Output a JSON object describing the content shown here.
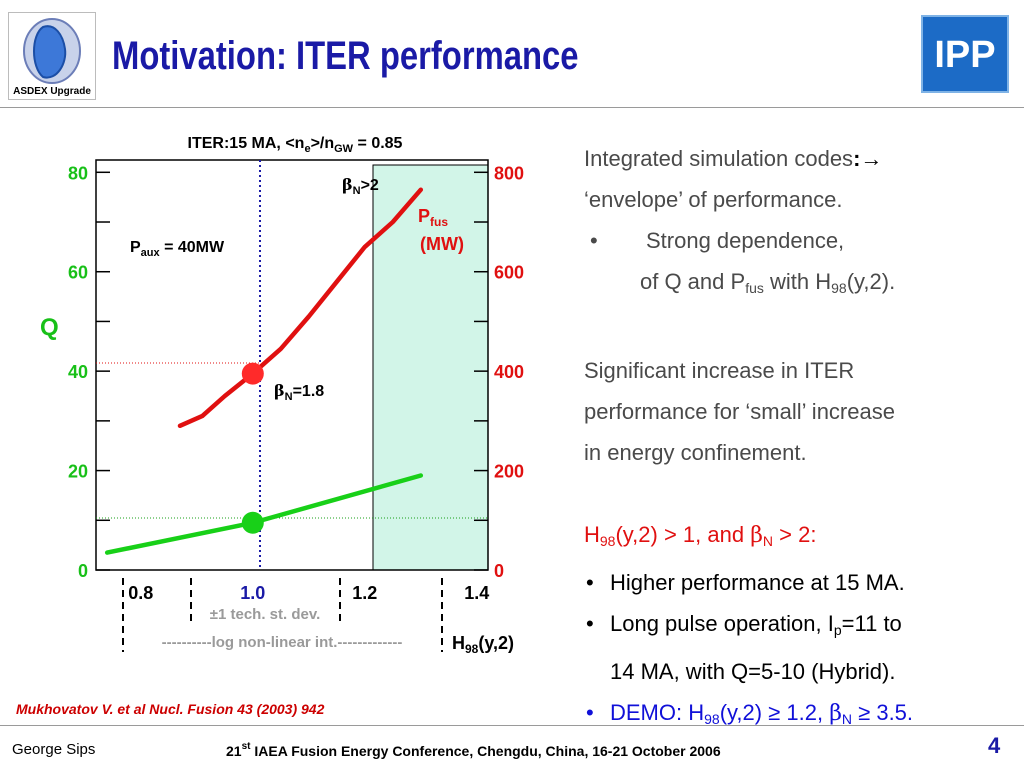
{
  "slide": {
    "title": "Motivation: ITER performance",
    "logo_left_label": "ASDEX Upgrade",
    "logo_right_label": "IPP",
    "footer_author": "George Sips",
    "footer_conf_pre": "21",
    "footer_conf_sup": "st",
    "footer_conf_post": " IAEA Fusion Energy Conference, Chengdu, China, 16-21 October 2006",
    "page_number": "4",
    "citation": "Mukhovatov V. et al Nucl. Fusion 43 (2003) 942"
  },
  "bullets": {
    "line1a": "Integrated simulation codes",
    "line1b": ":",
    "line1c": "→",
    "line2": "‘envelope’ of performance.",
    "line3_bullet": "•",
    "line3": "Strong dependence,",
    "line4a": "of Q and P",
    "line4b": "fus",
    "line4c": " with H",
    "line4d": "98",
    "line4e": "(y,2).",
    "line5": "Significant increase in ITER",
    "line6": "performance for ‘small’ increase",
    "line7": "in energy confinement.",
    "line8a": "H",
    "line8b": "98",
    "line8c": "(y,2) > 1, and ",
    "line8d": "β",
    "line8e": "N",
    "line8f": " > 2:",
    "b1_bullet": "•",
    "b1": "Higher performance at 15 MA.",
    "b2_bullet": "•",
    "b2a": "Long pulse operation, I",
    "b2b": "p",
    "b2c": "=11 to",
    "b2d": "14 MA, with Q=5-10 (Hybrid).",
    "b3_bullet": "•",
    "b3a": "DEMO: H",
    "b3b": "98",
    "b3c": "(y,2) ≥ 1.2, ",
    "b3d": "β",
    "b3e": "N",
    "b3f": " ≥ 3.5."
  },
  "chart_data": {
    "type": "line",
    "title_a": "ITER:15 MA, <n",
    "title_b": "e",
    "title_c": ">/n",
    "title_d": "GW",
    "title_e": " = 0.85",
    "y_left_label": "Q",
    "y_left_ticks": [
      "0",
      "20",
      "40",
      "60",
      "80"
    ],
    "y_left_range": [
      0,
      80
    ],
    "y_right_ticks": [
      "0",
      "200",
      "400",
      "600",
      "800"
    ],
    "y_right_range": [
      0,
      800
    ],
    "y_right_label_a": "P",
    "y_right_label_b": "fus",
    "y_right_label_c": "(MW)",
    "x_ticks": [
      "0.8",
      "1.0",
      "1.2",
      "1.4"
    ],
    "x_range": [
      0.72,
      1.42
    ],
    "x_label_a": "H",
    "x_label_b": "98",
    "x_label_c": "(y,2)",
    "paux_a": "P",
    "paux_b": "aux",
    "paux_c": " = 40MW",
    "beta_high_a": "β",
    "beta_high_b": "N",
    "beta_high_c": ">2",
    "beta_low_a": "β",
    "beta_low_b": "N",
    "beta_low_c": "=1.8",
    "note_stdev": "±1 tech. st. dev.",
    "note_log": "----------log non-linear int.-------------",
    "shaded_region_x": [
      1.2,
      1.42
    ],
    "reference_x": 1.0,
    "series": [
      {
        "axis": "left",
        "color": "#18d018",
        "x": [
          0.74,
          1.0,
          1.3
        ],
        "y": [
          3.5,
          9.5,
          19
        ]
      },
      {
        "axis": "right",
        "color": "#e01010",
        "x": [
          0.87,
          0.91,
          0.95,
          1.0,
          1.05,
          1.1,
          1.15,
          1.2,
          1.25,
          1.3
        ],
        "y": [
          290,
          310,
          350,
          395,
          445,
          510,
          580,
          650,
          700,
          765
        ]
      }
    ],
    "markers": [
      {
        "axis": "left",
        "x": 1.0,
        "y": 9.5,
        "color": "#18d018"
      },
      {
        "axis": "right",
        "x": 1.0,
        "y": 395,
        "color": "#ff2a2a"
      }
    ]
  }
}
